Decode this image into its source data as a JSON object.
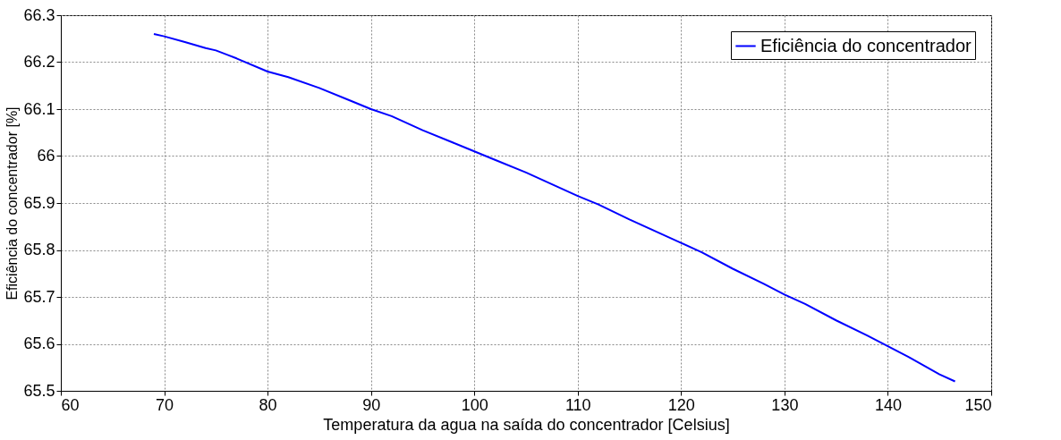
{
  "chart_data": {
    "type": "line",
    "xlabel": "Temperatura da agua na saída do concentrador [Celsius]",
    "ylabel": "Eficiência do concentrador [%]",
    "series": [
      {
        "name": "Eficiência do concentrador",
        "color": "#0000ff",
        "x": [
          69,
          70,
          72,
          74,
          75,
          77,
          80,
          82,
          85,
          88,
          90,
          92,
          95,
          98,
          100,
          102,
          105,
          108,
          110,
          112,
          115,
          118,
          120,
          122,
          125,
          128,
          130,
          132,
          135,
          138,
          140,
          142,
          145,
          146.5
        ],
        "values": [
          66.26,
          66.255,
          66.243,
          66.23,
          66.225,
          66.208,
          66.18,
          66.168,
          66.145,
          66.118,
          66.1,
          66.085,
          66.055,
          66.028,
          66.01,
          65.992,
          65.965,
          65.935,
          65.915,
          65.897,
          65.865,
          65.835,
          65.815,
          65.795,
          65.76,
          65.728,
          65.705,
          65.685,
          65.65,
          65.618,
          65.595,
          65.572,
          65.535,
          65.52
        ]
      }
    ],
    "xlim": [
      60,
      150
    ],
    "xticks": [
      60,
      70,
      80,
      90,
      100,
      110,
      120,
      130,
      140,
      150
    ],
    "ylim": [
      65.5,
      66.3
    ],
    "yticks": [
      65.5,
      65.6,
      65.7,
      65.8,
      65.9,
      66,
      66.1,
      66.2,
      66.3
    ],
    "grid": true,
    "legend": "top right",
    "marker": "none",
    "line_style": "solid"
  }
}
